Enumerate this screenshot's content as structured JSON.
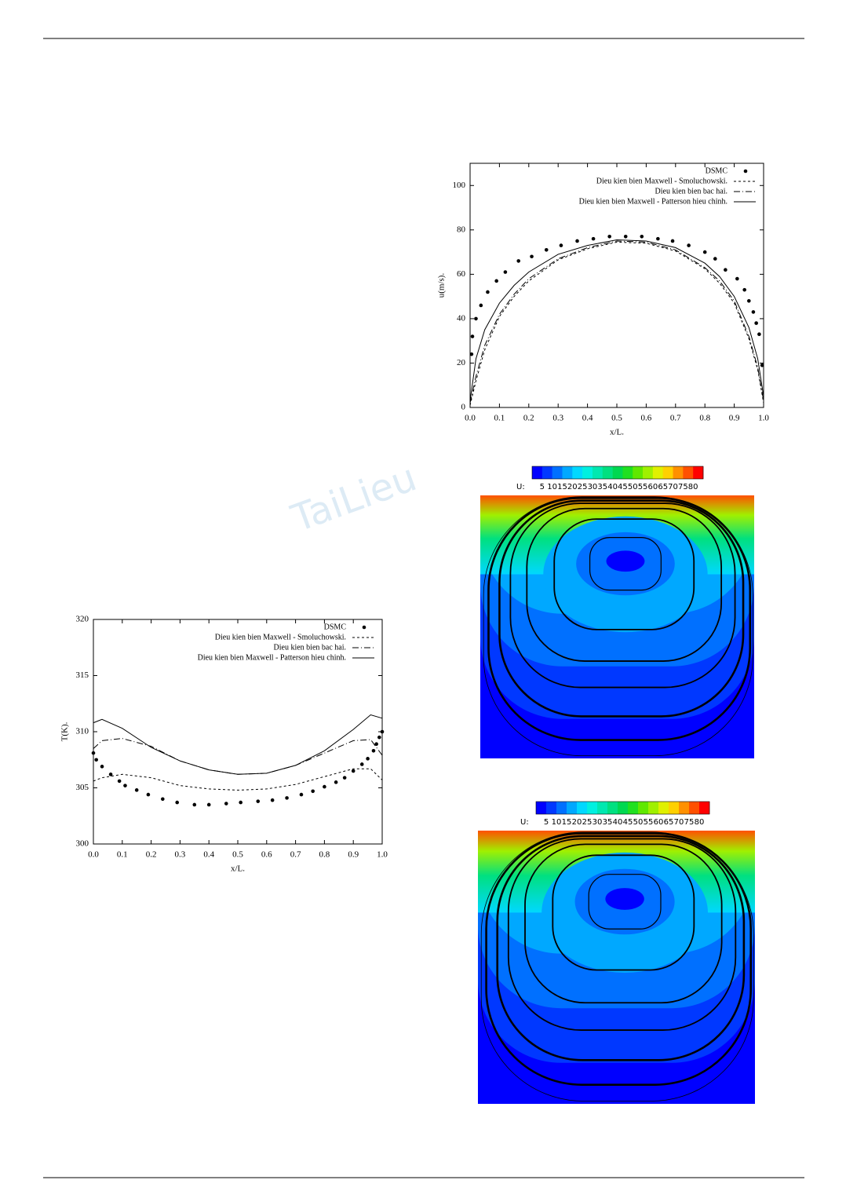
{
  "watermark": "TaiLieu",
  "chart_data": [
    {
      "type": "line",
      "xlabel": "x/L.",
      "ylabel": "u(m/s).",
      "xlim": [
        0,
        1
      ],
      "ylim": [
        0,
        110
      ],
      "xticks": [
        {
          "value": 0,
          "label": "0.0"
        },
        0.1,
        0.2,
        0.3,
        0.4,
        0.5,
        0.6,
        0.7,
        0.8,
        0.9,
        {
          "value": 1,
          "label": "1.0"
        }
      ],
      "yticks": [
        0,
        20,
        40,
        60,
        80,
        100
      ],
      "legend": "upper right",
      "x": [
        0,
        0.02,
        0.05,
        0.1,
        0.15,
        0.2,
        0.3,
        0.4,
        0.5,
        0.6,
        0.7,
        0.8,
        0.85,
        0.9,
        0.95,
        0.98,
        1.0
      ],
      "series": [
        {
          "name": "DSMC",
          "style": "dots",
          "color": "#000",
          "x": [
            0.005,
            0.008,
            0.02,
            0.037,
            0.06,
            0.09,
            0.12,
            0.165,
            0.21,
            0.26,
            0.31,
            0.365,
            0.42,
            0.475,
            0.53,
            0.585,
            0.64,
            0.69,
            0.745,
            0.8,
            0.835,
            0.87,
            0.91,
            0.935,
            0.95,
            0.965,
            0.975,
            0.985,
            0.995
          ],
          "values": [
            24,
            32,
            40,
            46,
            52,
            57,
            61,
            66,
            68,
            71,
            73,
            75,
            76,
            77,
            77,
            77,
            76,
            75,
            73,
            70,
            67,
            62,
            58,
            53,
            48,
            43,
            38,
            33,
            19
          ]
        },
        {
          "name": "Dieu kien bien Maxwell - Smoluchowski.",
          "style": "dashed",
          "color": "#000",
          "values": [
            1,
            12,
            26,
            41,
            50,
            57,
            66.5,
            71.5,
            74.5,
            74,
            70.5,
            62.5,
            56,
            47,
            31,
            17,
            2
          ]
        },
        {
          "name": "Dieu kien bien bac hai.",
          "style": "dashdot",
          "color": "#000",
          "values": [
            2,
            14,
            28,
            42,
            51,
            58,
            67,
            72,
            75,
            74.5,
            71,
            63,
            57,
            48,
            32,
            18,
            3
          ]
        },
        {
          "name": "Dieu kien bien Maxwell - Patterson hieu chinh.",
          "style": "solid",
          "color": "#000",
          "values": [
            3,
            22,
            35,
            47,
            55,
            61,
            69,
            73,
            75.5,
            75,
            72,
            65,
            59,
            50,
            36,
            22,
            5
          ]
        }
      ]
    },
    {
      "type": "line",
      "xlabel": "x/L.",
      "ylabel": "T(K).",
      "xlim": [
        0,
        1
      ],
      "ylim": [
        300,
        320
      ],
      "xticks": [
        {
          "value": 0,
          "label": "0.0"
        },
        0.1,
        0.2,
        0.3,
        0.4,
        0.5,
        0.6,
        0.7,
        0.8,
        0.9,
        {
          "value": 1,
          "label": "1.0"
        }
      ],
      "yticks": [
        300,
        305,
        310,
        315,
        320
      ],
      "legend": "upper right",
      "x": [
        0,
        0.03,
        0.1,
        0.2,
        0.3,
        0.4,
        0.5,
        0.6,
        0.7,
        0.8,
        0.9,
        0.96,
        1.0
      ],
      "series": [
        {
          "name": "DSMC",
          "style": "dots",
          "color": "#000",
          "x": [
            0,
            0.01,
            0.03,
            0.06,
            0.09,
            0.11,
            0.15,
            0.19,
            0.24,
            0.29,
            0.35,
            0.4,
            0.46,
            0.51,
            0.57,
            0.62,
            0.67,
            0.72,
            0.76,
            0.8,
            0.84,
            0.87,
            0.9,
            0.93,
            0.95,
            0.97,
            0.98,
            0.99,
            1.0
          ],
          "values": [
            308.1,
            307.5,
            306.9,
            306.2,
            305.6,
            305.2,
            304.8,
            304.4,
            304.0,
            303.7,
            303.5,
            303.5,
            303.6,
            303.7,
            303.8,
            303.9,
            304.1,
            304.4,
            304.7,
            305.1,
            305.5,
            305.9,
            306.5,
            307.1,
            307.6,
            308.3,
            308.9,
            309.5,
            310.0
          ]
        },
        {
          "name": "Dieu kien bien Maxwell - Smoluchowski.",
          "style": "dashed",
          "color": "#000",
          "values": [
            305.6,
            305.9,
            306.2,
            305.9,
            305.2,
            304.9,
            304.8,
            304.9,
            305.3,
            306.0,
            306.7,
            306.7,
            305.7
          ]
        },
        {
          "name": "Dieu kien bien bac hai.",
          "style": "dashdot",
          "color": "#000",
          "values": [
            308.5,
            309.2,
            309.4,
            308.7,
            307.4,
            306.6,
            306.2,
            306.3,
            307.0,
            308.1,
            309.2,
            309.3,
            307.9
          ]
        },
        {
          "name": "Dieu kien bien Maxwell - Patterson hieu chinh.",
          "style": "solid",
          "color": "#000",
          "values": [
            310.8,
            311.1,
            310.3,
            308.6,
            307.4,
            306.6,
            306.2,
            306.3,
            307.0,
            308.3,
            310.2,
            311.5,
            311.2
          ]
        }
      ]
    },
    {
      "type": "contour",
      "label": "U:",
      "levels": [
        5,
        10,
        15,
        20,
        25,
        30,
        35,
        40,
        45,
        50,
        55,
        60,
        65,
        70,
        75,
        80
      ],
      "colors": [
        "#0000ff",
        "#0038ff",
        "#0070ff",
        "#00a8ff",
        "#00d8ff",
        "#00f0e0",
        "#00e8b0",
        "#00e080",
        "#00d850",
        "#20e020",
        "#60e800",
        "#a0f000",
        "#e0f000",
        "#ffd000",
        "#ff9000",
        "#ff5000",
        "#ff0000"
      ]
    },
    {
      "type": "contour",
      "label": "U:",
      "levels": [
        5,
        10,
        15,
        20,
        25,
        30,
        35,
        40,
        45,
        50,
        55,
        60,
        65,
        70,
        75,
        80
      ],
      "colors": [
        "#0000ff",
        "#0038ff",
        "#0070ff",
        "#00a8ff",
        "#00d8ff",
        "#00f0e0",
        "#00e8b0",
        "#00e080",
        "#00d850",
        "#20e020",
        "#60e800",
        "#a0f000",
        "#e0f000",
        "#ffd000",
        "#ff9000",
        "#ff5000",
        "#ff0000"
      ]
    }
  ]
}
